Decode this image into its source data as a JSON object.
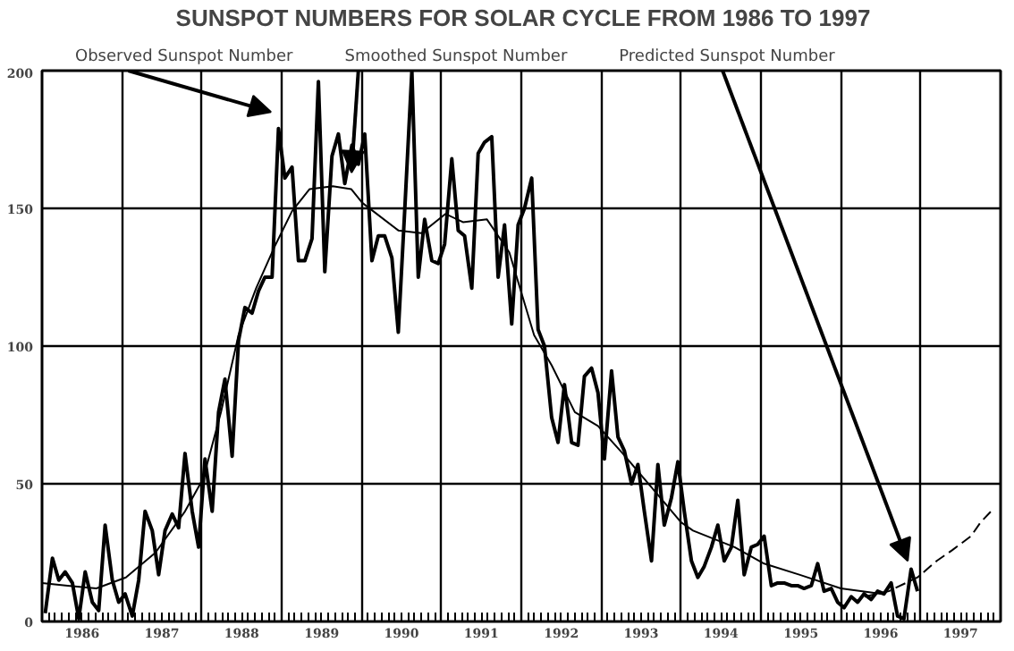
{
  "chart_data": {
    "type": "line",
    "title": "SUNSPOT NUMBERS FOR SOLAR CYCLE FROM 1986 TO 1997",
    "xlim": [
      1986,
      1998
    ],
    "ylim": [
      0,
      200
    ],
    "yticks": [
      0,
      50,
      100,
      150,
      200
    ],
    "xticks": [
      {
        "value": 1986,
        "label": null
      },
      {
        "value": 1987,
        "label": null
      },
      {
        "value": 1988,
        "label": null
      },
      {
        "value": 1989,
        "label": null
      },
      {
        "value": 1990,
        "label": null
      },
      {
        "value": 1991,
        "label": null
      },
      {
        "value": 1992,
        "label": null
      },
      {
        "value": 1993,
        "label": null
      },
      {
        "value": 1994,
        "label": null
      },
      {
        "value": 1995,
        "label": null
      },
      {
        "value": 1996,
        "label": null
      },
      {
        "value": 1997,
        "label": null
      },
      {
        "value": 1998,
        "label": null
      },
      {
        "value": 1986.5,
        "label": "1986"
      },
      {
        "value": 1987.5,
        "label": "1987"
      },
      {
        "value": 1988.5,
        "label": "1988"
      },
      {
        "value": 1989.5,
        "label": "1989"
      },
      {
        "value": 1990.5,
        "label": "1990"
      },
      {
        "value": 1991.5,
        "label": "1991"
      },
      {
        "value": 1992.5,
        "label": "1992"
      },
      {
        "value": 1993.5,
        "label": "1993"
      },
      {
        "value": 1994.5,
        "label": "1994"
      },
      {
        "value": 1995.5,
        "label": "1995"
      },
      {
        "value": 1996.5,
        "label": "1996"
      },
      {
        "value": 1997.5,
        "label": "1997"
      }
    ],
    "grid": true,
    "legend": "top",
    "series": [
      {
        "name": "Observed Sunspot Number",
        "color": "#000000",
        "line_style": "solid",
        "x": [
          1986.04,
          1986.13,
          1986.21,
          1986.29,
          1986.38,
          1986.46,
          1986.54,
          1986.63,
          1986.71,
          1986.79,
          1986.88,
          1986.96,
          1987.04,
          1987.13,
          1987.21,
          1987.29,
          1987.38,
          1987.46,
          1987.54,
          1987.63,
          1987.71,
          1987.79,
          1987.88,
          1987.96,
          1988.04,
          1988.13,
          1988.21,
          1988.29,
          1988.38,
          1988.46,
          1988.54,
          1988.63,
          1988.71,
          1988.79,
          1988.88,
          1988.96,
          1989.04,
          1989.13,
          1989.21,
          1989.29,
          1989.38,
          1989.46,
          1989.54,
          1989.63,
          1989.71,
          1989.79,
          1989.88,
          1989.96,
          1990.04,
          1990.13,
          1990.21,
          1990.29,
          1990.38,
          1990.46,
          1990.54,
          1990.63,
          1990.71,
          1990.79,
          1990.88,
          1990.96,
          1991.04,
          1991.13,
          1991.21,
          1991.29,
          1991.38,
          1991.46,
          1991.54,
          1991.63,
          1991.71,
          1991.79,
          1991.88,
          1991.96,
          1992.04,
          1992.13,
          1992.21,
          1992.29,
          1992.38,
          1992.46,
          1992.54,
          1992.63,
          1992.71,
          1992.79,
          1992.88,
          1992.96,
          1993.04,
          1993.13,
          1993.21,
          1993.29,
          1993.38,
          1993.46,
          1993.54,
          1993.63,
          1993.71,
          1993.79,
          1993.88,
          1993.96,
          1994.04,
          1994.13,
          1994.21,
          1994.29,
          1994.38,
          1994.46,
          1994.54,
          1994.63,
          1994.71,
          1994.79,
          1994.88,
          1994.96,
          1995.04,
          1995.13,
          1995.21,
          1995.29,
          1995.38,
          1995.46,
          1995.54,
          1995.63,
          1995.71,
          1995.79,
          1995.88,
          1995.96,
          1996.04,
          1996.13,
          1996.21,
          1996.29,
          1996.38,
          1996.46,
          1996.54,
          1996.63,
          1996.71,
          1996.79,
          1996.88,
          1996.96
        ],
        "values": [
          3,
          23,
          15,
          18,
          14,
          1,
          18,
          7,
          4,
          35,
          15,
          7,
          10,
          2,
          15,
          40,
          33,
          17,
          33,
          39,
          34,
          61,
          40,
          27,
          59,
          40,
          76,
          88,
          60,
          102,
          114,
          112,
          120,
          125,
          125,
          179,
          161,
          165,
          131,
          131,
          139,
          196,
          127,
          169,
          177,
          159,
          173,
          166,
          177,
          131,
          140,
          140,
          132,
          105,
          149,
          200,
          125,
          146,
          131,
          130,
          137,
          168,
          142,
          140,
          121,
          170,
          174,
          176,
          125,
          144,
          108,
          144,
          150,
          161,
          106,
          100,
          74,
          65,
          86,
          65,
          64,
          89,
          92,
          83,
          59,
          91,
          67,
          62,
          50,
          57,
          40,
          22,
          57,
          35,
          45,
          58,
          40,
          22,
          16,
          20,
          27,
          35,
          22,
          27,
          44,
          17,
          27,
          28,
          31,
          13,
          14,
          14,
          13,
          13,
          12,
          13,
          21,
          11,
          12,
          7,
          5,
          9,
          7,
          10,
          8,
          11,
          10,
          14,
          2,
          1,
          19,
          11
        ]
      },
      {
        "name": "Smoothed Sunspot Number",
        "color": "#000000",
        "line_style": "solid",
        "x": [
          1986.0,
          1986.32,
          1986.68,
          1987.05,
          1987.42,
          1987.79,
          1988.02,
          1988.24,
          1988.46,
          1988.68,
          1988.91,
          1989.13,
          1989.35,
          1989.64,
          1989.87,
          1990.01,
          1990.46,
          1990.75,
          1991.05,
          1991.27,
          1991.57,
          1991.85,
          1992.16,
          1992.38,
          1992.67,
          1992.96,
          1993.27,
          1993.71,
          1994.0,
          1994.15,
          1994.67,
          1995.04,
          1995.48,
          1996.0,
          1996.52
        ],
        "values": [
          14,
          13,
          12,
          16,
          25,
          40,
          52,
          76,
          104,
          121,
          136,
          149,
          157,
          158,
          157,
          152,
          142,
          141,
          148,
          145,
          146,
          134,
          104,
          93,
          76,
          71,
          61,
          46,
          36,
          33,
          27,
          21,
          17,
          12,
          10
        ]
      },
      {
        "name": "Predicted Sunspot Number",
        "color": "#000000",
        "line_style": "dashed",
        "x": [
          1996.3,
          1996.6,
          1996.96,
          1997.2,
          1997.4,
          1997.63,
          1997.75,
          1997.88
        ],
        "values": [
          9,
          11,
          16,
          22,
          26,
          31,
          36,
          40
        ]
      }
    ]
  }
}
